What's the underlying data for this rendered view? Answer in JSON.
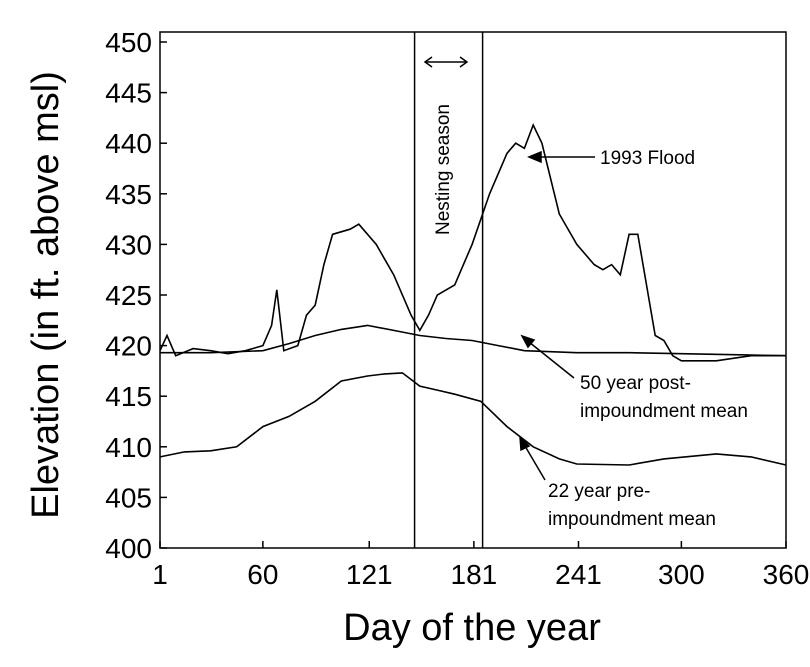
{
  "chart_data": {
    "type": "line",
    "x_label": "Day of the year",
    "y_label": "Elevation (in ft. above msl)",
    "xlim": [
      1,
      360
    ],
    "ylim": [
      400,
      450
    ],
    "xticks": [
      1,
      60,
      121,
      181,
      241,
      300,
      360
    ],
    "yticks": [
      400,
      405,
      410,
      415,
      420,
      425,
      430,
      435,
      440,
      445,
      450
    ],
    "nesting_season": [
      147,
      186
    ],
    "annotations": {
      "nesting": "Nesting season",
      "flood": "1993 Flood",
      "post": [
        "50 year post-",
        "impoundment mean"
      ],
      "pre": [
        "22 year pre-",
        "impoundment  mean"
      ]
    },
    "series": [
      {
        "name": "1993 Flood",
        "color": "#000000",
        "x": [
          1,
          5,
          10,
          20,
          30,
          40,
          50,
          60,
          65,
          68,
          72,
          80,
          85,
          90,
          95,
          100,
          110,
          115,
          125,
          135,
          145,
          150,
          155,
          160,
          170,
          180,
          190,
          200,
          205,
          210,
          215,
          220,
          230,
          240,
          250,
          255,
          260,
          265,
          270,
          275,
          280,
          285,
          290,
          295,
          300,
          320,
          340,
          360
        ],
        "values": [
          419.5,
          421,
          419,
          419.7,
          419.5,
          419.2,
          419.5,
          420,
          422,
          425.5,
          419.5,
          420,
          423,
          424,
          428,
          431,
          431.5,
          432,
          430,
          427,
          423,
          421.5,
          423,
          425,
          426,
          430,
          435,
          439,
          440,
          439.5,
          441.8,
          440,
          433,
          430,
          428,
          427.5,
          428,
          427,
          431,
          431,
          426,
          421,
          420.5,
          419,
          418.5,
          418.5,
          419,
          419
        ]
      },
      {
        "name": "50 year post-impoundment mean",
        "color": "#000000",
        "x": [
          1,
          30,
          60,
          75,
          90,
          105,
          120,
          135,
          150,
          165,
          180,
          195,
          210,
          240,
          270,
          300,
          330,
          360
        ],
        "values": [
          419.3,
          419.3,
          419.5,
          420.2,
          421,
          421.6,
          422,
          421.5,
          421,
          420.7,
          420.5,
          420,
          419.5,
          419.3,
          419.3,
          419.2,
          419.1,
          419
        ]
      },
      {
        "name": "22 year pre-impoundment mean",
        "color": "#000000",
        "x": [
          1,
          15,
          30,
          45,
          60,
          75,
          90,
          105,
          120,
          130,
          140,
          150,
          160,
          170,
          185,
          200,
          215,
          230,
          240,
          270,
          290,
          320,
          340,
          360
        ],
        "values": [
          409,
          409.5,
          409.6,
          410,
          412,
          413,
          414.5,
          416.5,
          417,
          417.2,
          417.3,
          416,
          415.6,
          415.2,
          414.5,
          412,
          410,
          408.8,
          408.3,
          408.2,
          408.8,
          409.3,
          409,
          408.2
        ]
      }
    ]
  }
}
